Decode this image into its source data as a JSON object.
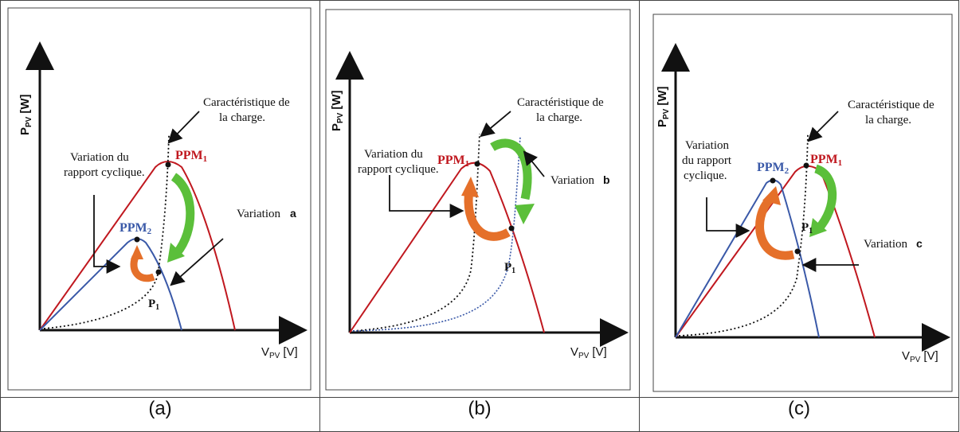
{
  "panels": [
    {
      "caption": "(a)",
      "ylabel_main": "P",
      "ylabel_sub": "PV",
      "ylabel_unit": "[W]",
      "xlabel_main": "V",
      "xlabel_sub": "PV",
      "xlabel_unit": "[V]",
      "load_label_line1": "Caractéristique de",
      "load_label_line2": "la charge.",
      "duty_label_line1": "Variation du",
      "duty_label_line2": "rapport cyclique.",
      "variation_label": "Variation",
      "variation_letter": "a",
      "ppm1": "PPM",
      "ppm1_sub": "1",
      "ppm2": "PPM",
      "ppm2_sub": "2",
      "p1": "P",
      "p1_sub": "1"
    },
    {
      "caption": "(b)",
      "ylabel_main": "P",
      "ylabel_sub": "PV",
      "ylabel_unit": "[W]",
      "xlabel_main": "V",
      "xlabel_sub": "PV",
      "xlabel_unit": "[V]",
      "load_label_line1": "Caractéristique de",
      "load_label_line2": "la charge.",
      "duty_label_line1": "Variation du",
      "duty_label_line2": "rapport cyclique.",
      "variation_label": "Variation",
      "variation_letter": "b",
      "ppm1": "PPM",
      "ppm1_sub": "1",
      "p1": "P",
      "p1_sub": "1"
    },
    {
      "caption": "(c)",
      "ylabel_main": "P",
      "ylabel_sub": "PV",
      "ylabel_unit": "[W]",
      "xlabel_main": "V",
      "xlabel_sub": "PV",
      "xlabel_unit": "[V]",
      "load_label_line1": "Caractéristique de",
      "load_label_line2": "la charge.",
      "duty_label_line1": "Variation",
      "duty_label_line2": "du rapport",
      "duty_label_line3": "cyclique.",
      "variation_label": "Variation",
      "variation_letter": "c",
      "ppm1": "PPM",
      "ppm1_sub": "1",
      "ppm2": "PPM",
      "ppm2_sub": "2",
      "p1": "P",
      "p1_sub": "1"
    }
  ],
  "colors": {
    "pv_curve_red": "#c0181f",
    "pv_curve_blue": "#3a59a8",
    "arrow_green": "#5bbf3a",
    "arrow_orange": "#e5702a",
    "load_curve": "#111111"
  }
}
